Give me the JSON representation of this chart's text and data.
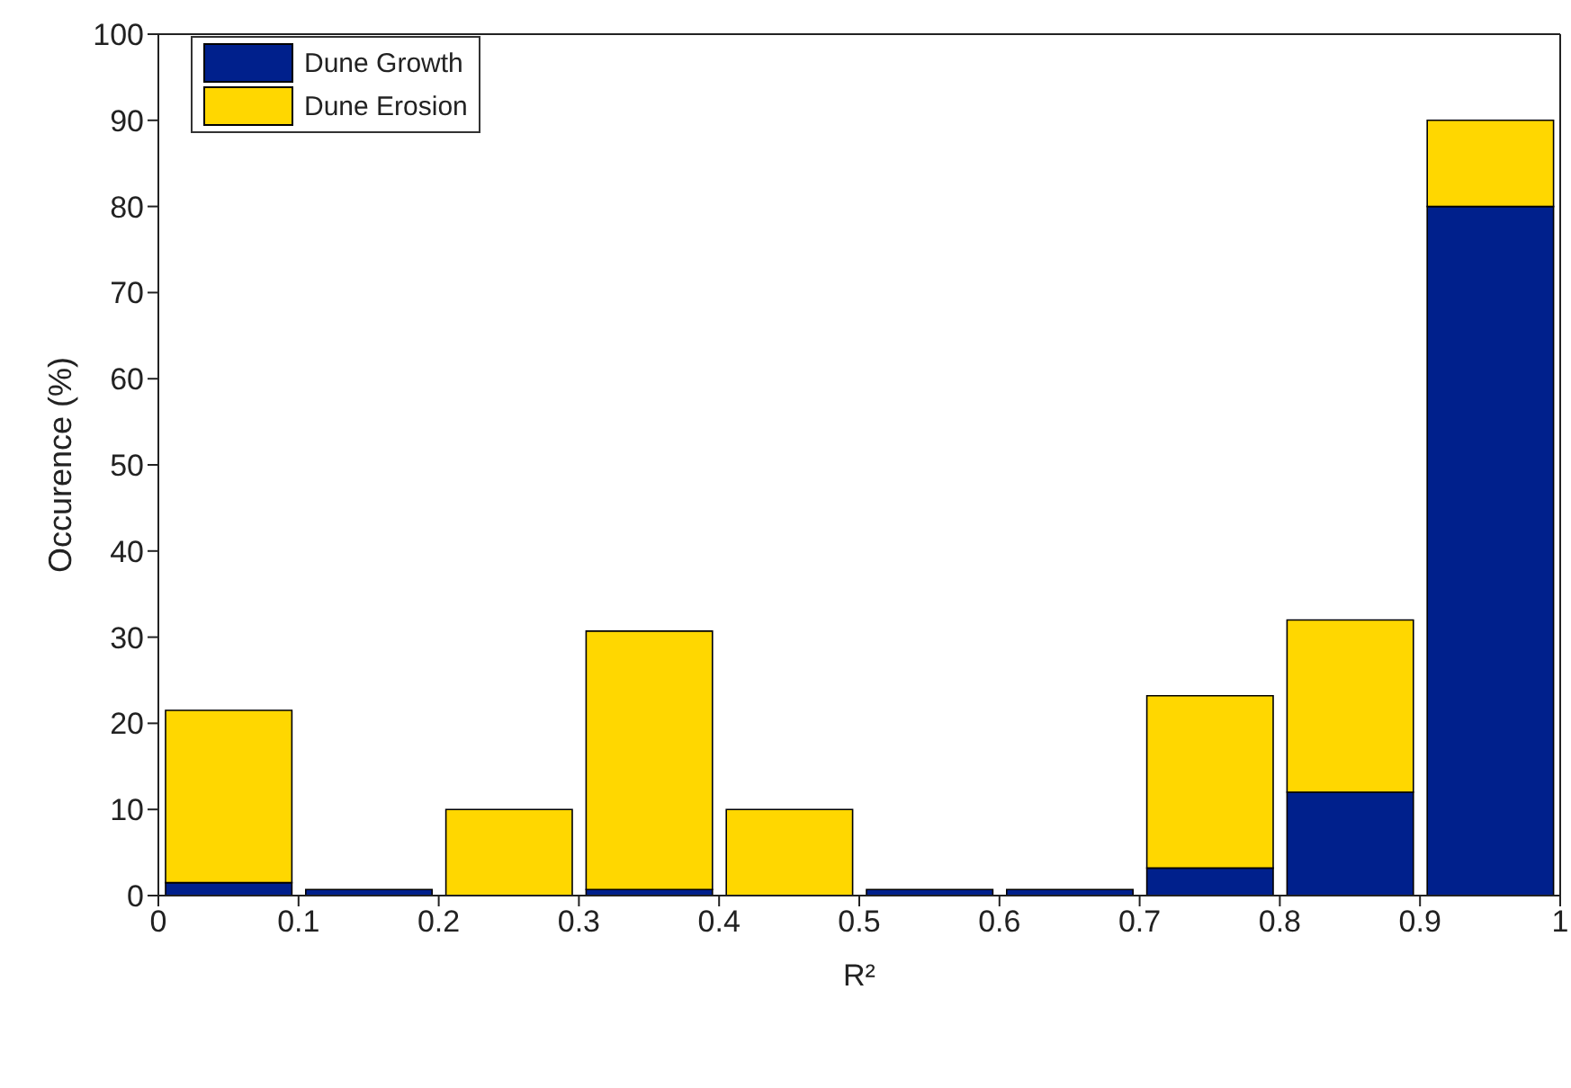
{
  "chart_data": {
    "type": "bar",
    "stacked": true,
    "xlabel": "R²",
    "ylabel": "Occurence (%)",
    "x": [
      0.05,
      0.15,
      0.25,
      0.35,
      0.45,
      0.55,
      0.65,
      0.75,
      0.85,
      0.95
    ],
    "series": [
      {
        "name": "Dune Growth",
        "color": "#00208c",
        "values": [
          1.5,
          0.7,
          0,
          0.7,
          0,
          0.7,
          0.7,
          3.2,
          12,
          80
        ]
      },
      {
        "name": "Dune Erosion",
        "color": "#ffd700",
        "values": [
          20,
          0,
          10,
          30,
          10,
          0,
          0,
          20,
          20,
          10
        ]
      }
    ],
    "xlim": [
      0,
      1
    ],
    "xticks": [
      0,
      0.1,
      0.2,
      0.3,
      0.4,
      0.5,
      0.6,
      0.7,
      0.8,
      0.9,
      1
    ],
    "ylim": [
      0,
      100
    ],
    "yticks": [
      0,
      10,
      20,
      30,
      40,
      50,
      60,
      70,
      80,
      90,
      100
    ],
    "grid": false,
    "legend": "top left"
  }
}
